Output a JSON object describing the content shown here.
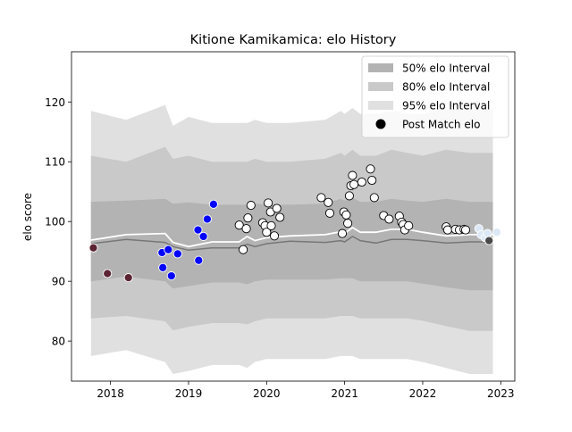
{
  "chart_data": {
    "type": "scatter",
    "title": "Kitione Kamikamica: elo History",
    "xlabel": "",
    "ylabel": "elo score",
    "xlim": [
      2017.5,
      2023.18
    ],
    "ylim": [
      73.3,
      128.4
    ],
    "x_ticks": [
      2018,
      2019,
      2020,
      2021,
      2022,
      2023
    ],
    "x_tick_labels": [
      "2018",
      "2019",
      "2020",
      "2021",
      "2022",
      "2023"
    ],
    "y_ticks": [
      80,
      90,
      100,
      110,
      120
    ],
    "y_tick_labels": [
      "80",
      "90",
      "100",
      "110",
      "120"
    ],
    "grid": false,
    "legend_position": "top-right",
    "legend": [
      {
        "label": "50% elo Interval",
        "kind": "band",
        "color": "#b3b3b3"
      },
      {
        "label": "80% elo Interval",
        "kind": "band",
        "color": "#c9c9c9"
      },
      {
        "label": "95% elo Interval",
        "kind": "band",
        "color": "#e0e0e0"
      },
      {
        "label": "Post Match elo",
        "kind": "marker",
        "color": "#000000"
      }
    ],
    "mean_line": {
      "color": "#ffffff",
      "points": [
        [
          2017.75,
          96.9
        ],
        [
          2018.2,
          97.8
        ],
        [
          2018.7,
          98.0
        ],
        [
          2018.8,
          96.5
        ],
        [
          2019.0,
          95.8
        ],
        [
          2019.3,
          96.6
        ],
        [
          2019.65,
          96.6
        ],
        [
          2019.75,
          97.5
        ],
        [
          2019.85,
          96.8
        ],
        [
          2020.0,
          97.3
        ],
        [
          2020.3,
          97.6
        ],
        [
          2020.75,
          97.8
        ],
        [
          2020.95,
          98.3
        ],
        [
          2021.0,
          98.0
        ],
        [
          2021.1,
          99.0
        ],
        [
          2021.2,
          98.2
        ],
        [
          2021.4,
          98.2
        ],
        [
          2021.6,
          98.7
        ],
        [
          2021.8,
          98.7
        ],
        [
          2022.0,
          98.2
        ],
        [
          2022.3,
          97.6
        ],
        [
          2022.6,
          97.8
        ],
        [
          2022.9,
          97.8
        ]
      ]
    },
    "median_line": {
      "color": "#777777",
      "points": [
        [
          2017.75,
          96.3
        ],
        [
          2018.2,
          97.0
        ],
        [
          2018.7,
          96.5
        ],
        [
          2018.8,
          95.8
        ],
        [
          2019.0,
          95.2
        ],
        [
          2019.3,
          95.6
        ],
        [
          2019.65,
          95.6
        ],
        [
          2019.75,
          96.2
        ],
        [
          2019.85,
          95.8
        ],
        [
          2020.0,
          96.3
        ],
        [
          2020.3,
          96.7
        ],
        [
          2020.75,
          96.5
        ],
        [
          2020.95,
          96.8
        ],
        [
          2021.0,
          96.6
        ],
        [
          2021.1,
          97.5
        ],
        [
          2021.2,
          96.8
        ],
        [
          2021.4,
          96.4
        ],
        [
          2021.6,
          97.0
        ],
        [
          2021.8,
          97.0
        ],
        [
          2022.0,
          96.8
        ],
        [
          2022.3,
          96.4
        ],
        [
          2022.6,
          96.6
        ],
        [
          2022.9,
          96.6
        ]
      ]
    },
    "bands": [
      {
        "name": "95% elo Interval",
        "color": "#e0e0e0",
        "x": [
          2017.75,
          2018.2,
          2018.7,
          2018.8,
          2019.0,
          2019.3,
          2019.65,
          2019.75,
          2019.85,
          2020.0,
          2020.3,
          2020.75,
          2020.95,
          2021.0,
          2021.1,
          2021.2,
          2021.4,
          2021.6,
          2021.8,
          2022.0,
          2022.3,
          2022.6,
          2022.9
        ],
        "upper": [
          118.5,
          117.0,
          119.5,
          116.0,
          117.5,
          116.5,
          116.5,
          116.5,
          117.0,
          116.5,
          116.5,
          117.0,
          118.5,
          118.0,
          119.0,
          118.0,
          118.0,
          118.5,
          118.0,
          118.0,
          119.0,
          118.8,
          118.8
        ],
        "lower": [
          77.5,
          78.5,
          76.5,
          74.5,
          75.0,
          76.0,
          76.0,
          75.5,
          76.5,
          77.0,
          77.0,
          77.0,
          77.5,
          77.5,
          77.5,
          77.0,
          77.0,
          77.0,
          77.0,
          76.5,
          75.5,
          74.5,
          74.5
        ]
      },
      {
        "name": "80% elo Interval",
        "color": "#c9c9c9",
        "x": [
          2017.75,
          2018.2,
          2018.7,
          2018.8,
          2019.0,
          2019.3,
          2019.65,
          2019.75,
          2019.85,
          2020.0,
          2020.3,
          2020.75,
          2020.95,
          2021.0,
          2021.1,
          2021.2,
          2021.4,
          2021.6,
          2021.8,
          2022.0,
          2022.3,
          2022.6,
          2022.9
        ],
        "upper": [
          111.0,
          110.0,
          112.5,
          110.5,
          111.0,
          110.0,
          110.0,
          110.0,
          110.5,
          110.0,
          110.0,
          110.5,
          111.5,
          111.0,
          112.0,
          111.0,
          111.0,
          112.0,
          111.5,
          111.0,
          112.0,
          111.5,
          111.5
        ],
        "lower": [
          83.8,
          84.2,
          83.3,
          81.8,
          82.4,
          83.0,
          83.0,
          82.8,
          83.3,
          83.8,
          83.8,
          83.8,
          84.2,
          84.2,
          84.2,
          83.8,
          83.8,
          83.8,
          83.8,
          83.4,
          82.5,
          81.7,
          81.7
        ]
      },
      {
        "name": "50% elo Interval",
        "color": "#b3b3b3",
        "x": [
          2017.75,
          2018.2,
          2018.7,
          2018.8,
          2019.0,
          2019.3,
          2019.65,
          2019.75,
          2019.85,
          2020.0,
          2020.3,
          2020.75,
          2020.95,
          2021.0,
          2021.1,
          2021.2,
          2021.4,
          2021.6,
          2021.8,
          2022.0,
          2022.3,
          2022.6,
          2022.9
        ],
        "upper": [
          103.3,
          103.5,
          103.8,
          103.0,
          103.2,
          102.8,
          102.8,
          102.8,
          103.0,
          102.8,
          102.8,
          103.0,
          103.8,
          103.5,
          104.0,
          103.3,
          103.3,
          103.8,
          103.5,
          103.3,
          103.8,
          103.3,
          103.3
        ],
        "lower": [
          90.0,
          90.8,
          90.0,
          88.8,
          89.2,
          89.8,
          89.8,
          89.5,
          90.0,
          90.3,
          90.3,
          90.3,
          90.5,
          90.5,
          90.5,
          90.0,
          90.0,
          90.0,
          90.0,
          89.6,
          89.0,
          88.5,
          88.5
        ]
      }
    ],
    "series": [
      {
        "name": "Post Match elo",
        "color": "#5c2333",
        "x": [
          2017.78,
          2017.96,
          2018.23
        ],
        "y": [
          95.6,
          91.3,
          90.6
        ]
      },
      {
        "name": "Post Match elo",
        "color": "#0000ff",
        "x": [
          2018.66,
          2018.67,
          2018.74,
          2018.78,
          2018.86,
          2019.12,
          2019.13,
          2019.19,
          2019.24,
          2019.32
        ],
        "y": [
          94.8,
          92.3,
          95.3,
          90.9,
          94.6,
          98.6,
          93.5,
          97.5,
          100.4,
          102.9
        ]
      },
      {
        "name": "Post Match elo",
        "color": "#ffffff",
        "x": [
          2019.65,
          2019.7,
          2019.74,
          2019.76,
          2019.8,
          2019.95,
          2019.98,
          2020.0,
          2020.02,
          2020.05,
          2020.06,
          2020.1,
          2020.13,
          2020.17,
          2020.7,
          2020.79,
          2020.81,
          2020.97,
          2020.99,
          2021.02,
          2021.04,
          2021.06,
          2021.08,
          2021.1,
          2021.12,
          2021.22,
          2021.33,
          2021.35,
          2021.38,
          2021.5,
          2021.57,
          2021.7,
          2021.73,
          2021.75,
          2021.77,
          2021.82,
          2022.3,
          2022.32,
          2022.42,
          2022.47,
          2022.53,
          2022.55
        ],
        "y": [
          99.4,
          95.3,
          98.8,
          100.6,
          102.7,
          99.8,
          99.3,
          98.2,
          103.1,
          101.6,
          99.3,
          97.6,
          102.2,
          100.7,
          104.0,
          103.2,
          101.4,
          98.0,
          101.6,
          101.1,
          99.7,
          104.3,
          106.0,
          107.7,
          106.2,
          106.6,
          108.8,
          106.9,
          104.0,
          101.0,
          100.4,
          100.9,
          99.9,
          99.5,
          98.6,
          99.3,
          99.1,
          98.6,
          98.7,
          98.6,
          98.7,
          98.6
        ]
      },
      {
        "name": "Post Match elo",
        "color": "#dce8f5",
        "x": [
          2022.72,
          2022.75,
          2022.8,
          2022.83,
          2022.95
        ],
        "y": [
          98.8,
          97.8,
          97.3,
          98.0,
          98.2
        ]
      },
      {
        "name": "Post Match elo",
        "color": "#4a4a4a",
        "x": [
          2022.85
        ],
        "y": [
          96.8
        ]
      }
    ]
  }
}
